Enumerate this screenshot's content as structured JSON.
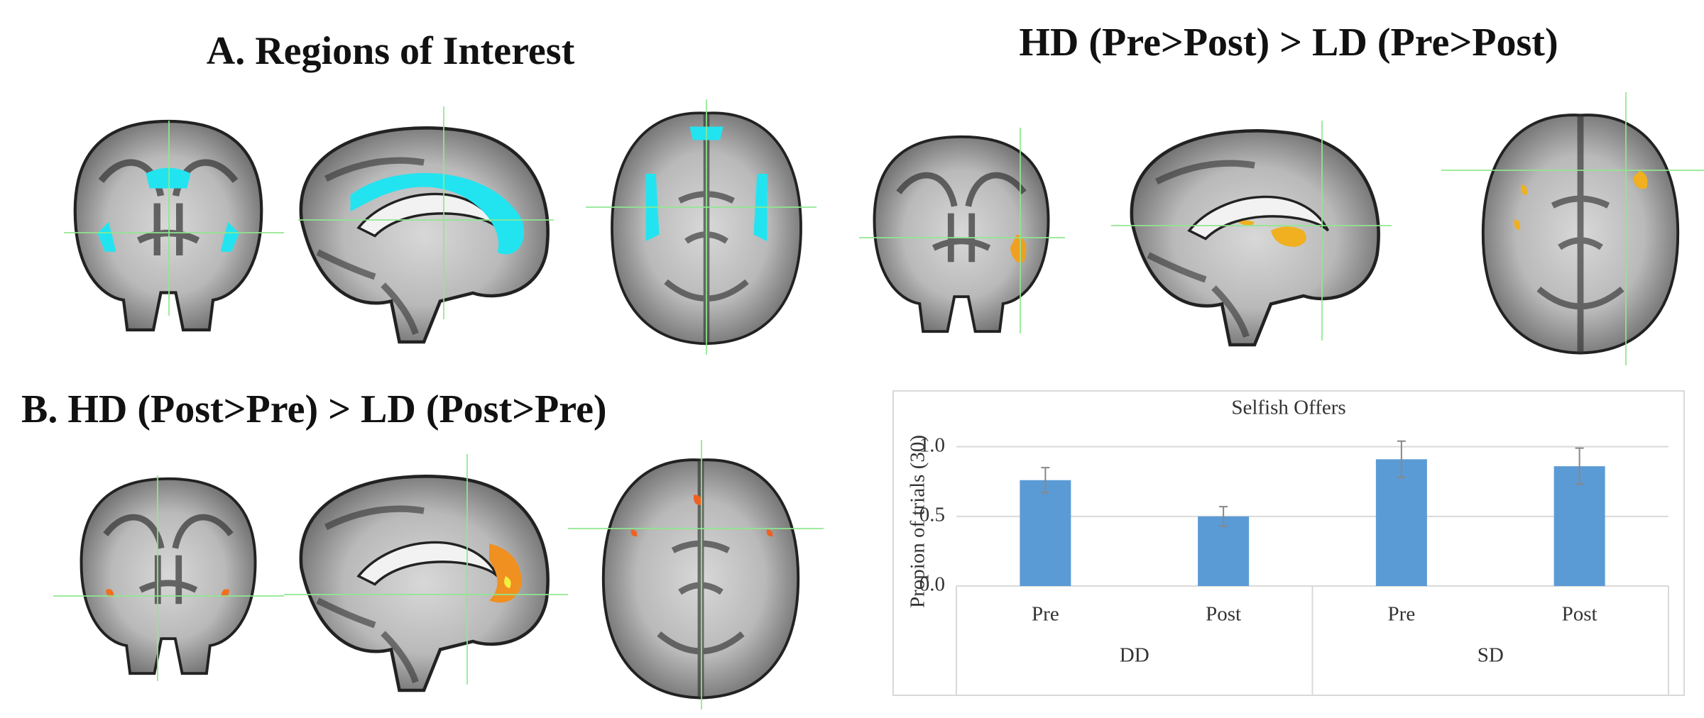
{
  "panels": {
    "a_title": "A. Regions of Interest",
    "hd_pre_title": "HD (Pre>Post) > LD (Pre>Post)",
    "b_title": "B. HD (Post>Pre) > LD (Post>Pre)"
  },
  "chart_data": {
    "type": "bar",
    "title": "Selfish Offers",
    "y_label": "Propion of trials (30)",
    "categories": [
      "Pre",
      "Post",
      "Pre",
      "Post"
    ],
    "groups": [
      "DD",
      "SD"
    ],
    "values": [
      0.76,
      0.5,
      0.91,
      0.86
    ],
    "errors": [
      0.09,
      0.07,
      0.13,
      0.13
    ],
    "color": "#5b9bd5",
    "ylim": [
      0,
      1.1
    ],
    "yticks": [
      {
        "value": 0,
        "label": "0.0"
      },
      0.5,
      {
        "value": 1,
        "label": "1.0"
      }
    ],
    "grid": true
  }
}
